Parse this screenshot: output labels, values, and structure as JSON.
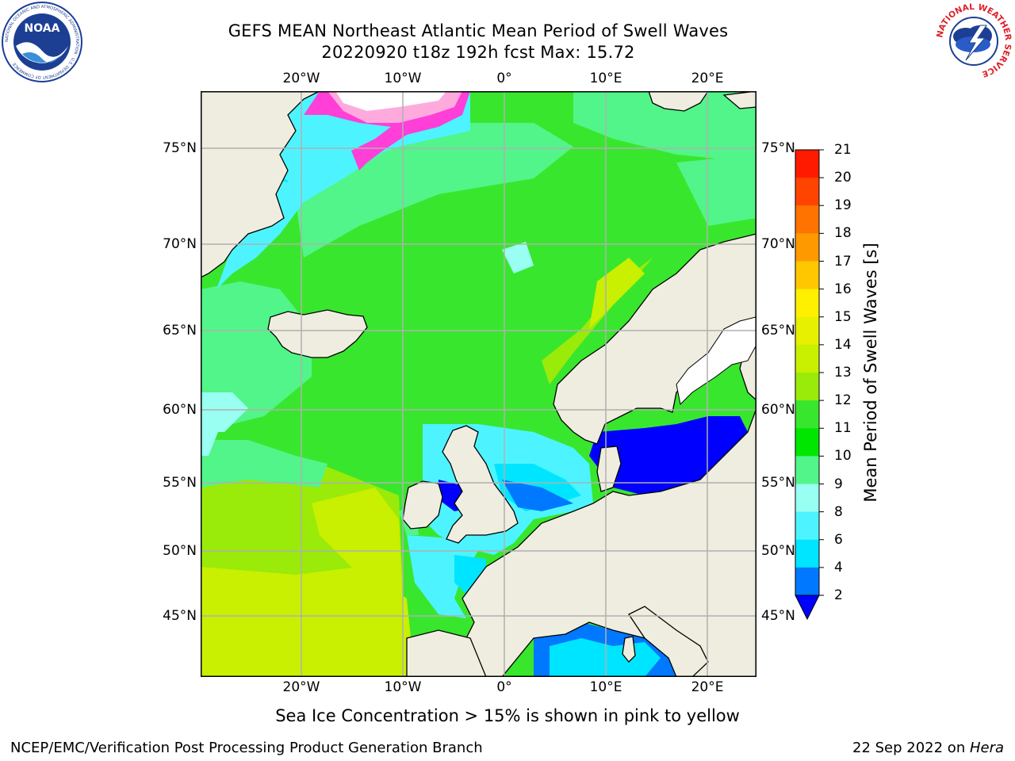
{
  "header": {
    "title_line1": "GEFS MEAN Northeast Atlantic Mean Period of Swell Waves",
    "title_line2": "20220920 t18z 192h fcst   Max: 15.72"
  },
  "map": {
    "lon_labels": [
      "20°W",
      "10°W",
      "0°",
      "10°E",
      "20°E"
    ],
    "lat_labels": [
      "75°N",
      "70°N",
      "65°N",
      "60°N",
      "55°N",
      "50°N",
      "45°N"
    ],
    "fill_colors": {
      "land": "#EEEDDF",
      "coast": "#000000",
      "grid": "#B0B0B0",
      "lakes": "#FFFFFF"
    }
  },
  "colorbar": {
    "label": "Mean Period of Swell Waves [s]",
    "ticks": [
      "2",
      "4",
      "6",
      "8",
      "9",
      "10",
      "11",
      "12",
      "13",
      "14",
      "15",
      "16",
      "17",
      "18",
      "19",
      "20",
      "21"
    ],
    "colors": [
      "#0000FF",
      "#0078FF",
      "#00E5FF",
      "#4DF4FF",
      "#99FFF2",
      "#52F589",
      "#00E600",
      "#39E62E",
      "#9AEA0A",
      "#C8F000",
      "#E6F000",
      "#FFF000",
      "#FFC700",
      "#FF9900",
      "#FF7300",
      "#FF4400",
      "#FF1A00",
      "#FF0000"
    ]
  },
  "footer": {
    "note": "Sea Ice Concentration > 15% is shown in pink to yellow",
    "credit": "NCEP/EMC/Verification Post Processing Product Generation Branch",
    "date": "22 Sep 2022 on ",
    "machine": "Hera"
  },
  "logos": {
    "noaa_text": "NOAA",
    "noaa_ring": "NATIONAL OCEANIC AND ATMOSPHERIC ADMINISTRATION · U.S. DEPARTMENT OF COMMERCE",
    "nws_ring": "NATIONAL WEATHER SERVICE"
  }
}
